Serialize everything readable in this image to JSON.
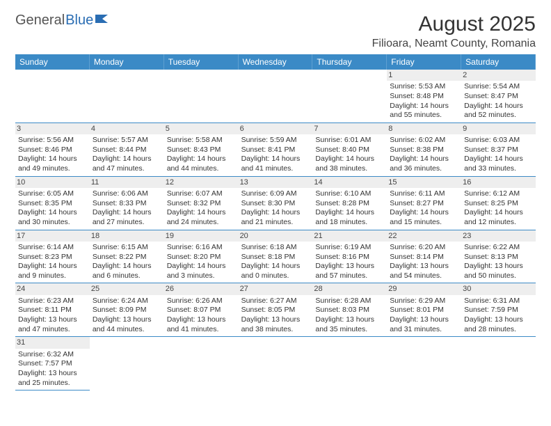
{
  "logo": {
    "text_general": "General",
    "text_blue": "Blue"
  },
  "title": "August 2025",
  "location": "Filioara, Neamt County, Romania",
  "colors": {
    "header_bg": "#3b8ac6",
    "header_text": "#ffffff",
    "border": "#3b8ac6",
    "daynum_bg": "#eeeeee",
    "text": "#333333"
  },
  "day_headers": [
    "Sunday",
    "Monday",
    "Tuesday",
    "Wednesday",
    "Thursday",
    "Friday",
    "Saturday"
  ],
  "weeks": [
    [
      null,
      null,
      null,
      null,
      null,
      {
        "n": "1",
        "sr": "Sunrise: 5:53 AM",
        "ss": "Sunset: 8:48 PM",
        "dl1": "Daylight: 14 hours",
        "dl2": "and 55 minutes."
      },
      {
        "n": "2",
        "sr": "Sunrise: 5:54 AM",
        "ss": "Sunset: 8:47 PM",
        "dl1": "Daylight: 14 hours",
        "dl2": "and 52 minutes."
      }
    ],
    [
      {
        "n": "3",
        "sr": "Sunrise: 5:56 AM",
        "ss": "Sunset: 8:46 PM",
        "dl1": "Daylight: 14 hours",
        "dl2": "and 49 minutes."
      },
      {
        "n": "4",
        "sr": "Sunrise: 5:57 AM",
        "ss": "Sunset: 8:44 PM",
        "dl1": "Daylight: 14 hours",
        "dl2": "and 47 minutes."
      },
      {
        "n": "5",
        "sr": "Sunrise: 5:58 AM",
        "ss": "Sunset: 8:43 PM",
        "dl1": "Daylight: 14 hours",
        "dl2": "and 44 minutes."
      },
      {
        "n": "6",
        "sr": "Sunrise: 5:59 AM",
        "ss": "Sunset: 8:41 PM",
        "dl1": "Daylight: 14 hours",
        "dl2": "and 41 minutes."
      },
      {
        "n": "7",
        "sr": "Sunrise: 6:01 AM",
        "ss": "Sunset: 8:40 PM",
        "dl1": "Daylight: 14 hours",
        "dl2": "and 38 minutes."
      },
      {
        "n": "8",
        "sr": "Sunrise: 6:02 AM",
        "ss": "Sunset: 8:38 PM",
        "dl1": "Daylight: 14 hours",
        "dl2": "and 36 minutes."
      },
      {
        "n": "9",
        "sr": "Sunrise: 6:03 AM",
        "ss": "Sunset: 8:37 PM",
        "dl1": "Daylight: 14 hours",
        "dl2": "and 33 minutes."
      }
    ],
    [
      {
        "n": "10",
        "sr": "Sunrise: 6:05 AM",
        "ss": "Sunset: 8:35 PM",
        "dl1": "Daylight: 14 hours",
        "dl2": "and 30 minutes."
      },
      {
        "n": "11",
        "sr": "Sunrise: 6:06 AM",
        "ss": "Sunset: 8:33 PM",
        "dl1": "Daylight: 14 hours",
        "dl2": "and 27 minutes."
      },
      {
        "n": "12",
        "sr": "Sunrise: 6:07 AM",
        "ss": "Sunset: 8:32 PM",
        "dl1": "Daylight: 14 hours",
        "dl2": "and 24 minutes."
      },
      {
        "n": "13",
        "sr": "Sunrise: 6:09 AM",
        "ss": "Sunset: 8:30 PM",
        "dl1": "Daylight: 14 hours",
        "dl2": "and 21 minutes."
      },
      {
        "n": "14",
        "sr": "Sunrise: 6:10 AM",
        "ss": "Sunset: 8:28 PM",
        "dl1": "Daylight: 14 hours",
        "dl2": "and 18 minutes."
      },
      {
        "n": "15",
        "sr": "Sunrise: 6:11 AM",
        "ss": "Sunset: 8:27 PM",
        "dl1": "Daylight: 14 hours",
        "dl2": "and 15 minutes."
      },
      {
        "n": "16",
        "sr": "Sunrise: 6:12 AM",
        "ss": "Sunset: 8:25 PM",
        "dl1": "Daylight: 14 hours",
        "dl2": "and 12 minutes."
      }
    ],
    [
      {
        "n": "17",
        "sr": "Sunrise: 6:14 AM",
        "ss": "Sunset: 8:23 PM",
        "dl1": "Daylight: 14 hours",
        "dl2": "and 9 minutes."
      },
      {
        "n": "18",
        "sr": "Sunrise: 6:15 AM",
        "ss": "Sunset: 8:22 PM",
        "dl1": "Daylight: 14 hours",
        "dl2": "and 6 minutes."
      },
      {
        "n": "19",
        "sr": "Sunrise: 6:16 AM",
        "ss": "Sunset: 8:20 PM",
        "dl1": "Daylight: 14 hours",
        "dl2": "and 3 minutes."
      },
      {
        "n": "20",
        "sr": "Sunrise: 6:18 AM",
        "ss": "Sunset: 8:18 PM",
        "dl1": "Daylight: 14 hours",
        "dl2": "and 0 minutes."
      },
      {
        "n": "21",
        "sr": "Sunrise: 6:19 AM",
        "ss": "Sunset: 8:16 PM",
        "dl1": "Daylight: 13 hours",
        "dl2": "and 57 minutes."
      },
      {
        "n": "22",
        "sr": "Sunrise: 6:20 AM",
        "ss": "Sunset: 8:14 PM",
        "dl1": "Daylight: 13 hours",
        "dl2": "and 54 minutes."
      },
      {
        "n": "23",
        "sr": "Sunrise: 6:22 AM",
        "ss": "Sunset: 8:13 PM",
        "dl1": "Daylight: 13 hours",
        "dl2": "and 50 minutes."
      }
    ],
    [
      {
        "n": "24",
        "sr": "Sunrise: 6:23 AM",
        "ss": "Sunset: 8:11 PM",
        "dl1": "Daylight: 13 hours",
        "dl2": "and 47 minutes."
      },
      {
        "n": "25",
        "sr": "Sunrise: 6:24 AM",
        "ss": "Sunset: 8:09 PM",
        "dl1": "Daylight: 13 hours",
        "dl2": "and 44 minutes."
      },
      {
        "n": "26",
        "sr": "Sunrise: 6:26 AM",
        "ss": "Sunset: 8:07 PM",
        "dl1": "Daylight: 13 hours",
        "dl2": "and 41 minutes."
      },
      {
        "n": "27",
        "sr": "Sunrise: 6:27 AM",
        "ss": "Sunset: 8:05 PM",
        "dl1": "Daylight: 13 hours",
        "dl2": "and 38 minutes."
      },
      {
        "n": "28",
        "sr": "Sunrise: 6:28 AM",
        "ss": "Sunset: 8:03 PM",
        "dl1": "Daylight: 13 hours",
        "dl2": "and 35 minutes."
      },
      {
        "n": "29",
        "sr": "Sunrise: 6:29 AM",
        "ss": "Sunset: 8:01 PM",
        "dl1": "Daylight: 13 hours",
        "dl2": "and 31 minutes."
      },
      {
        "n": "30",
        "sr": "Sunrise: 6:31 AM",
        "ss": "Sunset: 7:59 PM",
        "dl1": "Daylight: 13 hours",
        "dl2": "and 28 minutes."
      }
    ],
    [
      {
        "n": "31",
        "sr": "Sunrise: 6:32 AM",
        "ss": "Sunset: 7:57 PM",
        "dl1": "Daylight: 13 hours",
        "dl2": "and 25 minutes."
      },
      null,
      null,
      null,
      null,
      null,
      null
    ]
  ]
}
